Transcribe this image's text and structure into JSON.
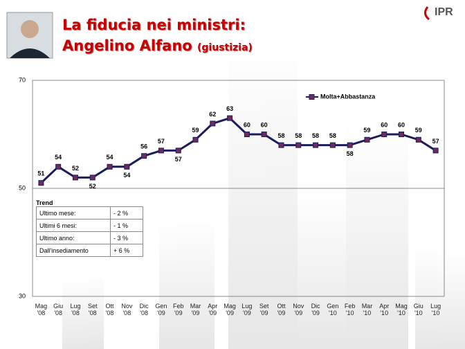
{
  "chart_data": {
    "type": "line",
    "title": "La fiducia nei ministri:",
    "subtitle": "Angelino Alfano",
    "subtitle_note": "(giustizia)",
    "logo": "IPR",
    "categories": [
      "Mag '08",
      "Giu '08",
      "Lug '08",
      "Set '08",
      "Ott '08",
      "Nov '08",
      "Dic '08",
      "Gen '09",
      "Feb '09",
      "Mar '09",
      "Apr '09",
      "Mag '09",
      "Lug '09",
      "Set '09",
      "Ott '09",
      "Nov '09",
      "Dic '09",
      "Gen '10",
      "Feb '10",
      "Mar '10",
      "Apr '10",
      "Mag '10",
      "Giu '10",
      "Lug '10"
    ],
    "series": [
      {
        "name": "Molta+Abbastanza",
        "color": "#1c1c5c",
        "marker_color": "#6b2c5e",
        "values": [
          51,
          54,
          52,
          52,
          54,
          54,
          56,
          57,
          57,
          59,
          62,
          63,
          60,
          60,
          58,
          58,
          58,
          58,
          58,
          59,
          60,
          60,
          59,
          57
        ]
      }
    ],
    "ylim": [
      30,
      70
    ],
    "yticks": [
      30,
      50,
      70
    ],
    "grid": true,
    "legend": "top-right",
    "trend": {
      "title": "Trend",
      "rows": [
        [
          "Ultimo mese:",
          "- 2 %"
        ],
        [
          "Ultimi 6 mesi:",
          "- 1 %"
        ],
        [
          "Ultimo anno:",
          "- 3 %"
        ],
        [
          "Dall'insediamento",
          "+ 6 %"
        ]
      ]
    }
  }
}
